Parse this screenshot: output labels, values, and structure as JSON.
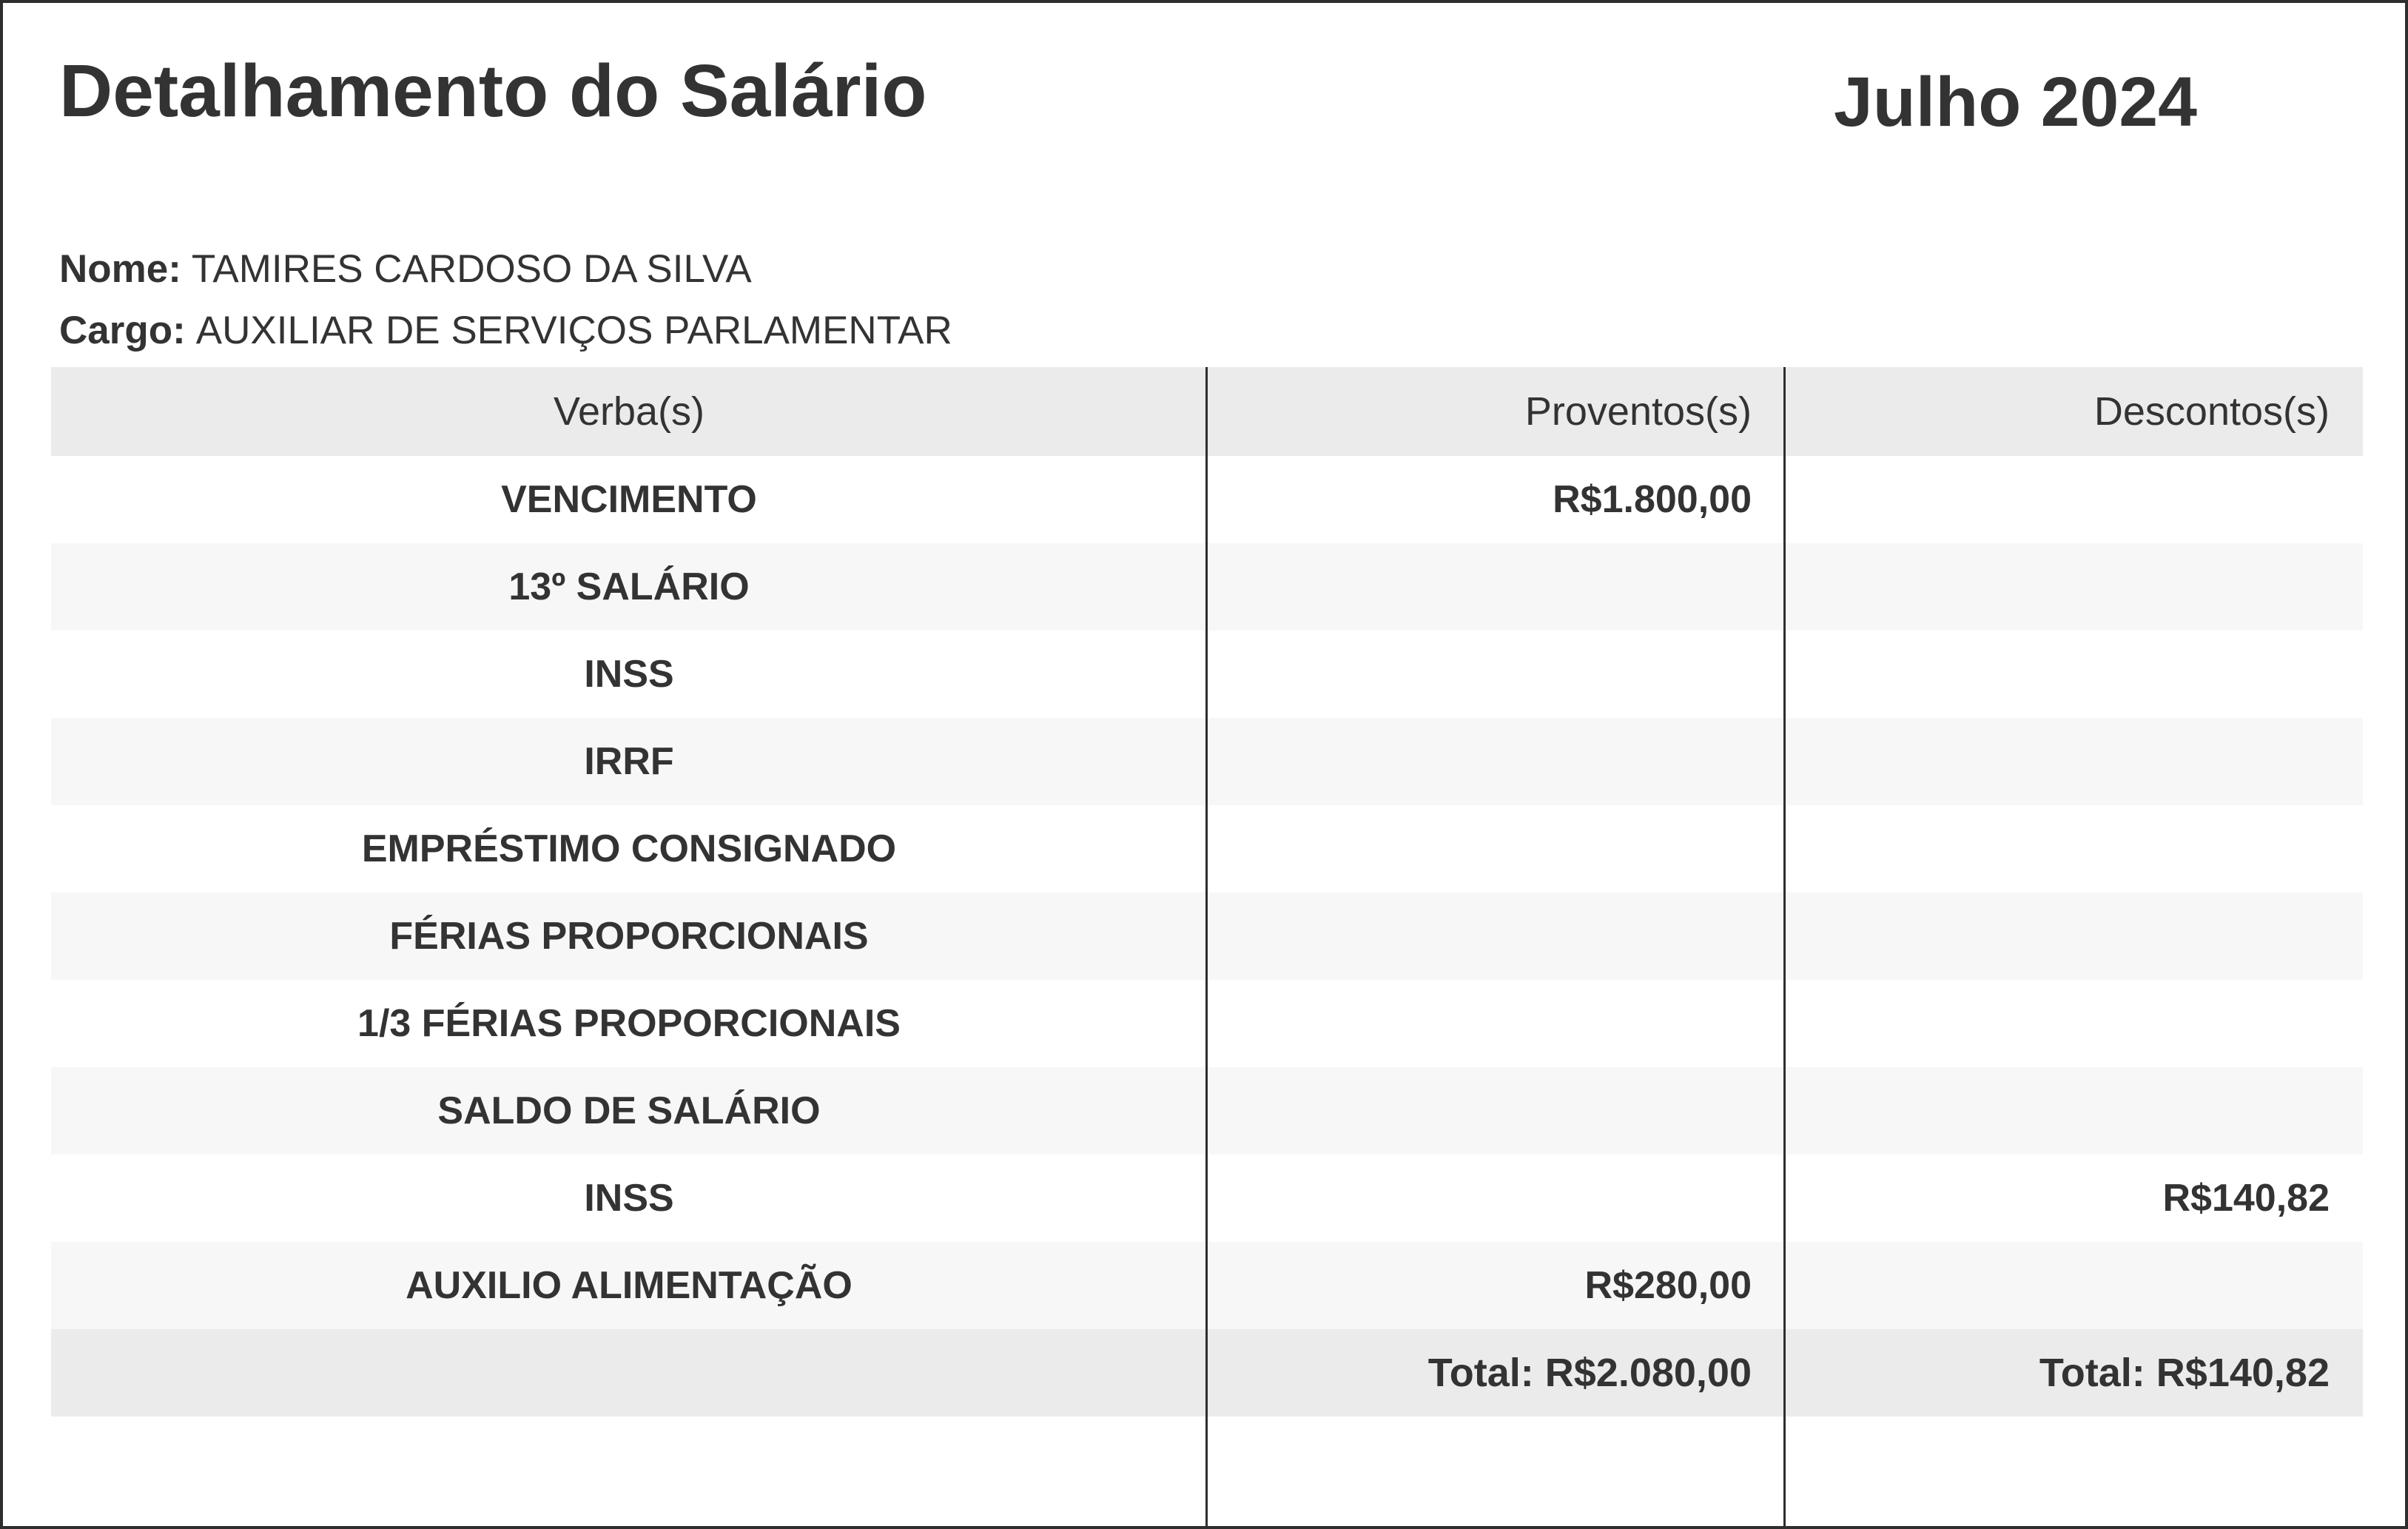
{
  "header": {
    "title": "Detalhamento do Salário",
    "period": "Julho 2024"
  },
  "employee": {
    "name_label": "Nome:",
    "name": "TAMIRES CARDOSO DA SILVA",
    "role_label": "Cargo:",
    "role": "AUXILIAR DE SERVIÇOS PARLAMENTAR"
  },
  "table": {
    "headers": [
      "Verba(s)",
      "Proventos(s)",
      "Descontos(s)"
    ],
    "rows": [
      {
        "verba": "VENCIMENTO",
        "proventos": "R$1.800,00",
        "descontos": ""
      },
      {
        "verba": "13º SALÁRIO",
        "proventos": "",
        "descontos": ""
      },
      {
        "verba": "INSS",
        "proventos": "",
        "descontos": ""
      },
      {
        "verba": "IRRF",
        "proventos": "",
        "descontos": ""
      },
      {
        "verba": "EMPRÉSTIMO CONSIGNADO",
        "proventos": "",
        "descontos": ""
      },
      {
        "verba": "FÉRIAS PROPORCIONAIS",
        "proventos": "",
        "descontos": ""
      },
      {
        "verba": "1/3 FÉRIAS PROPORCIONAIS",
        "proventos": "",
        "descontos": ""
      },
      {
        "verba": "SALDO DE SALÁRIO",
        "proventos": "",
        "descontos": ""
      },
      {
        "verba": "INSS",
        "proventos": "",
        "descontos": "R$140,82"
      },
      {
        "verba": "AUXILIO ALIMENTAÇÃO",
        "proventos": "R$280,00",
        "descontos": ""
      }
    ],
    "totals": {
      "verba": "",
      "proventos": "Total: R$2.080,00",
      "descontos": "Total: R$140,82"
    }
  },
  "colors": {
    "text": "#333333",
    "header_row_bg": "#ebebeb",
    "alt_row_bg": "#f7f7f7",
    "total_row_bg": "#ebebeb",
    "border": "#2e2e2e"
  }
}
